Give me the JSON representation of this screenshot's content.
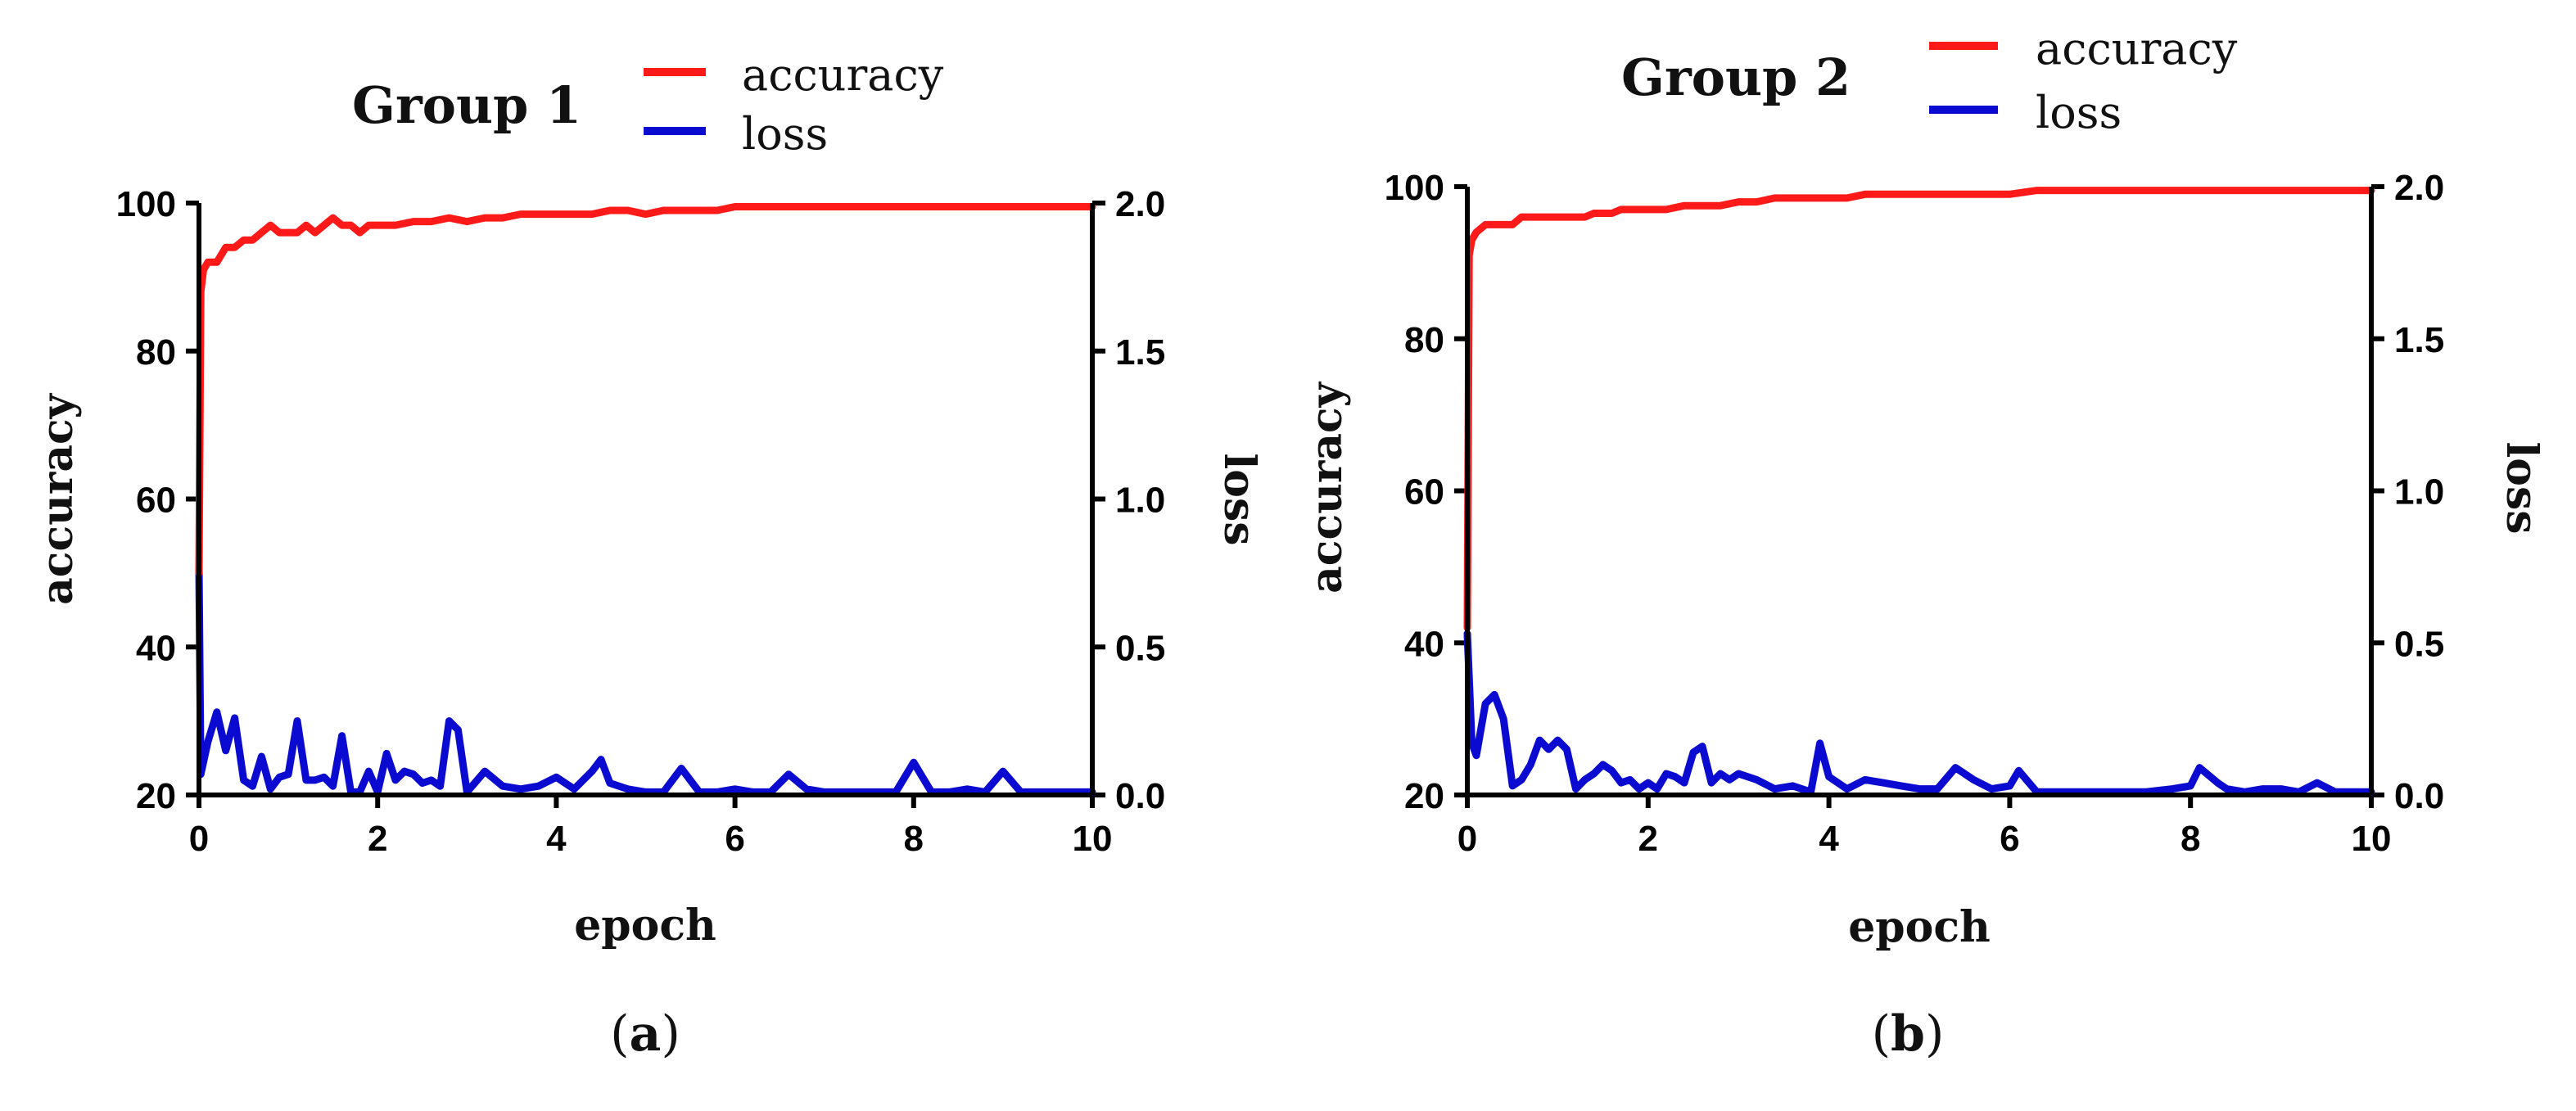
{
  "colors": {
    "accuracy": "#ff1a1a",
    "loss": "#0a0ad0"
  },
  "chart_data": [
    {
      "type": "line",
      "title": "Group 1",
      "sublabel": {
        "open": "(",
        "letter": "a",
        "close": ")"
      },
      "xlabel": "epoch",
      "ylabel": "accuracy",
      "y2label": "loss",
      "xlim": [
        0,
        10
      ],
      "ylim": [
        20,
        100
      ],
      "y2lim": [
        0,
        2
      ],
      "xticks": [
        "0",
        "2",
        "4",
        "6",
        "8",
        "10"
      ],
      "yticks": [
        "20",
        "40",
        "60",
        "80",
        "100"
      ],
      "y2ticks": [
        "0.0",
        "0.5",
        "1.0",
        "1.5",
        "2.0"
      ],
      "legend": [
        "accuracy",
        "loss"
      ],
      "series": [
        {
          "name": "accuracy",
          "axis": "left",
          "x": [
            0,
            0.02,
            0.05,
            0.1,
            0.2,
            0.3,
            0.4,
            0.5,
            0.6,
            0.7,
            0.8,
            0.9,
            1.0,
            1.1,
            1.2,
            1.3,
            1.4,
            1.5,
            1.6,
            1.7,
            1.8,
            1.9,
            2.0,
            2.2,
            2.4,
            2.6,
            2.8,
            3.0,
            3.2,
            3.4,
            3.6,
            3.8,
            4.0,
            4.2,
            4.4,
            4.6,
            4.8,
            5.0,
            5.2,
            5.4,
            5.6,
            5.8,
            6.0,
            6.3,
            6.6,
            6.9,
            7.2,
            7.5,
            7.8,
            8.0,
            8.3,
            8.6,
            8.9,
            9.2,
            9.5,
            9.8,
            10
          ],
          "y": [
            50,
            88,
            91,
            92,
            92,
            94,
            94,
            95,
            95,
            96,
            97,
            96,
            96,
            96,
            97,
            96,
            97,
            98,
            97,
            97,
            96,
            97,
            97,
            97,
            97.5,
            97.5,
            98,
            97.5,
            98,
            98,
            98.5,
            98.5,
            98.5,
            98.5,
            98.5,
            99,
            99,
            98.5,
            99,
            99,
            99,
            99,
            99.5,
            99.5,
            99.5,
            99.5,
            99.5,
            99.5,
            99.5,
            99.5,
            99.5,
            99.5,
            99.5,
            99.5,
            99.5,
            99.5,
            99.5
          ]
        },
        {
          "name": "loss",
          "axis": "right",
          "x": [
            0,
            0.02,
            0.1,
            0.2,
            0.3,
            0.4,
            0.5,
            0.6,
            0.7,
            0.8,
            0.9,
            1.0,
            1.1,
            1.2,
            1.3,
            1.4,
            1.5,
            1.6,
            1.7,
            1.8,
            1.9,
            2.0,
            2.1,
            2.2,
            2.3,
            2.4,
            2.5,
            2.6,
            2.7,
            2.8,
            2.9,
            3.0,
            3.2,
            3.4,
            3.6,
            3.8,
            4.0,
            4.2,
            4.4,
            4.5,
            4.6,
            4.8,
            5.0,
            5.2,
            5.4,
            5.6,
            5.8,
            6.0,
            6.2,
            6.4,
            6.6,
            6.8,
            7.0,
            7.2,
            7.4,
            7.6,
            7.8,
            8.0,
            8.2,
            8.4,
            8.6,
            8.8,
            9.0,
            9.2,
            9.4,
            9.6,
            9.8,
            10
          ],
          "y": [
            0.77,
            0.07,
            0.18,
            0.28,
            0.15,
            0.26,
            0.05,
            0.03,
            0.13,
            0.02,
            0.06,
            0.07,
            0.25,
            0.05,
            0.05,
            0.06,
            0.03,
            0.2,
            0.01,
            0.01,
            0.08,
            0.01,
            0.14,
            0.05,
            0.08,
            0.07,
            0.04,
            0.05,
            0.03,
            0.25,
            0.22,
            0.01,
            0.08,
            0.03,
            0.02,
            0.03,
            0.06,
            0.02,
            0.08,
            0.12,
            0.04,
            0.02,
            0.01,
            0.01,
            0.09,
            0.01,
            0.01,
            0.02,
            0.01,
            0.01,
            0.07,
            0.02,
            0.01,
            0.01,
            0.01,
            0.01,
            0.01,
            0.11,
            0.01,
            0.01,
            0.02,
            0.01,
            0.08,
            0.01,
            0.01,
            0.01,
            0.01,
            0.01
          ]
        }
      ]
    },
    {
      "type": "line",
      "title": "Group 2",
      "sublabel": {
        "open": "(",
        "letter": "b",
        "close": ")"
      },
      "xlabel": "epoch",
      "ylabel": "accuracy",
      "y2label": "loss",
      "xlim": [
        0,
        10
      ],
      "ylim": [
        20,
        100
      ],
      "y2lim": [
        0,
        2
      ],
      "xticks": [
        "0",
        "2",
        "4",
        "6",
        "8",
        "10"
      ],
      "yticks": [
        "20",
        "40",
        "60",
        "80",
        "100"
      ],
      "y2ticks": [
        "0.0",
        "0.5",
        "1.0",
        "1.5",
        "2.0"
      ],
      "legend": [
        "accuracy",
        "loss"
      ],
      "series": [
        {
          "name": "accuracy",
          "axis": "left",
          "x": [
            0,
            0.02,
            0.05,
            0.1,
            0.2,
            0.3,
            0.4,
            0.5,
            0.6,
            0.7,
            0.8,
            0.9,
            1.0,
            1.1,
            1.2,
            1.3,
            1.4,
            1.5,
            1.6,
            1.7,
            1.8,
            1.9,
            2.0,
            2.2,
            2.4,
            2.6,
            2.8,
            3.0,
            3.2,
            3.4,
            3.6,
            3.8,
            4.0,
            4.2,
            4.4,
            4.6,
            4.8,
            5.0,
            5.2,
            5.4,
            5.6,
            5.8,
            6.0,
            6.3,
            6.6,
            6.9,
            7.2,
            7.5,
            7.8,
            8.0,
            8.3,
            8.6,
            8.9,
            9.2,
            9.5,
            9.8,
            10
          ],
          "y": [
            42,
            91,
            93,
            94,
            95,
            95,
            95,
            95,
            96,
            96,
            96,
            96,
            96,
            96,
            96,
            96,
            96.5,
            96.5,
            96.5,
            97,
            97,
            97,
            97,
            97,
            97.5,
            97.5,
            97.5,
            98,
            98,
            98.5,
            98.5,
            98.5,
            98.5,
            98.5,
            99,
            99,
            99,
            99,
            99,
            99,
            99,
            99,
            99,
            99.5,
            99.5,
            99.5,
            99.5,
            99.5,
            99.5,
            99.5,
            99.5,
            99.5,
            99.5,
            99.5,
            99.5,
            99.5,
            99.5
          ]
        },
        {
          "name": "loss",
          "axis": "right",
          "x": [
            0,
            0.05,
            0.1,
            0.2,
            0.3,
            0.4,
            0.5,
            0.6,
            0.7,
            0.8,
            0.9,
            1.0,
            1.1,
            1.2,
            1.3,
            1.4,
            1.5,
            1.6,
            1.7,
            1.8,
            1.9,
            2.0,
            2.1,
            2.2,
            2.3,
            2.4,
            2.5,
            2.6,
            2.7,
            2.8,
            2.9,
            3.0,
            3.2,
            3.4,
            3.6,
            3.8,
            3.9,
            4.0,
            4.2,
            4.4,
            4.6,
            4.8,
            5.0,
            5.2,
            5.4,
            5.6,
            5.8,
            6.0,
            6.1,
            6.3,
            6.6,
            6.9,
            7.2,
            7.5,
            7.8,
            8.0,
            8.1,
            8.3,
            8.4,
            8.6,
            8.8,
            9.0,
            9.2,
            9.4,
            9.6,
            9.8,
            10
          ],
          "y": [
            0.53,
            0.17,
            0.13,
            0.3,
            0.33,
            0.25,
            0.03,
            0.05,
            0.1,
            0.18,
            0.15,
            0.18,
            0.15,
            0.02,
            0.05,
            0.07,
            0.1,
            0.08,
            0.04,
            0.05,
            0.02,
            0.04,
            0.02,
            0.07,
            0.06,
            0.04,
            0.14,
            0.16,
            0.04,
            0.07,
            0.05,
            0.07,
            0.05,
            0.02,
            0.03,
            0.01,
            0.17,
            0.06,
            0.02,
            0.05,
            0.04,
            0.03,
            0.02,
            0.02,
            0.09,
            0.05,
            0.02,
            0.03,
            0.08,
            0.01,
            0.01,
            0.01,
            0.01,
            0.01,
            0.02,
            0.03,
            0.09,
            0.04,
            0.02,
            0.01,
            0.02,
            0.02,
            0.01,
            0.04,
            0.01,
            0.01,
            0.01
          ]
        }
      ]
    }
  ]
}
